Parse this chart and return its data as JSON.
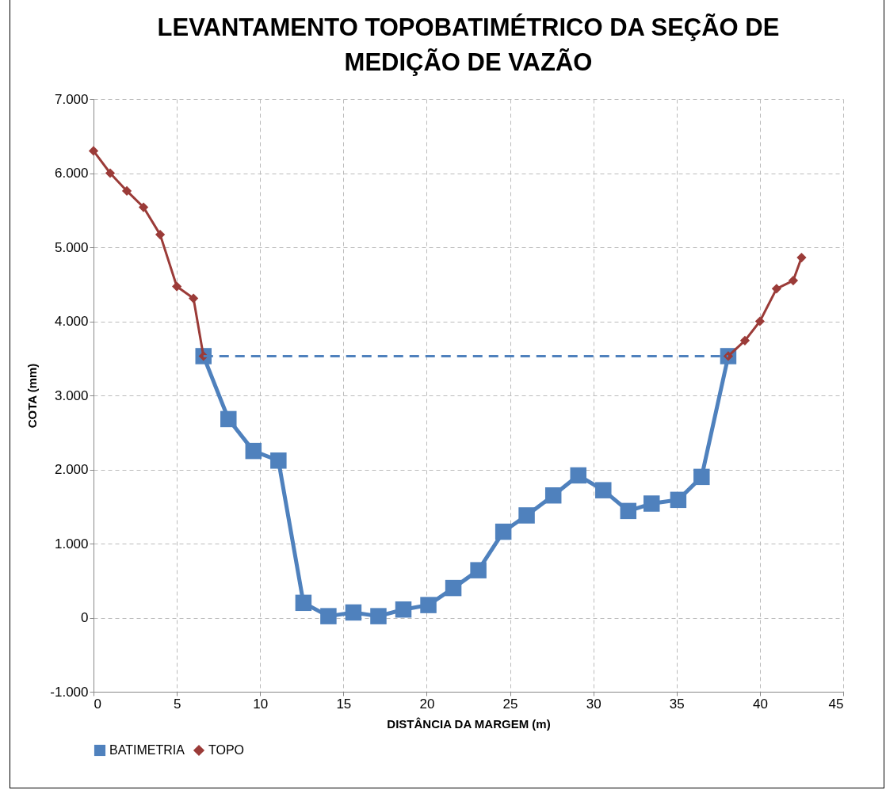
{
  "chart_data": {
    "type": "line",
    "title": "LEVANTAMENTO TOPOBATIMÉTRICO DA SEÇÃO DE MEDIÇÃO DE VAZÃO",
    "xlabel": "DISTÂNCIA DA MARGEM (m)",
    "ylabel": "COTA (mm)",
    "xlim": [
      0,
      45
    ],
    "xticks": [
      0,
      5,
      10,
      15,
      20,
      25,
      30,
      35,
      40,
      45
    ],
    "ylim": [
      -1000,
      7000
    ],
    "yticks": [
      {
        "value": -1000,
        "label": "-1.000"
      },
      0,
      {
        "value": 1000,
        "label": "1.000"
      },
      {
        "value": 2000,
        "label": "2.000"
      },
      {
        "value": 3000,
        "label": "3.000"
      },
      {
        "value": 4000,
        "label": "4.000"
      },
      {
        "value": 5000,
        "label": "5.000"
      },
      {
        "value": 6000,
        "label": "6.000"
      },
      {
        "value": 7000,
        "label": "7.000"
      }
    ],
    "grid": true,
    "legend": "bottom",
    "series": [
      {
        "name": "BATIMETRIA",
        "color": "#4f81bd",
        "marker": "square",
        "x": [
          6.6,
          8.1,
          9.6,
          11.1,
          12.6,
          14.1,
          15.6,
          17.1,
          18.6,
          20.1,
          21.6,
          23.1,
          24.6,
          26.0,
          27.6,
          29.1,
          30.6,
          32.1,
          33.5,
          35.1,
          36.5,
          38.1
        ],
        "values": [
          3530,
          2680,
          2250,
          2120,
          200,
          20,
          70,
          20,
          110,
          170,
          400,
          640,
          1160,
          1380,
          1650,
          1920,
          1720,
          1440,
          1540,
          1590,
          1900,
          3530
        ]
      },
      {
        "name": "TOPO",
        "color": "#9b3b38",
        "marker": "diamond",
        "x": [
          0,
          1,
          2,
          3,
          4,
          5,
          6,
          6.6,
          null,
          38.1,
          39.1,
          40.0,
          41.0,
          42.0,
          42.5
        ],
        "values": [
          6300,
          6000,
          5760,
          5540,
          5170,
          4470,
          4310,
          3530,
          null,
          3530,
          3740,
          4000,
          4440,
          4550,
          4860
        ]
      },
      {
        "color": "#4f81bd",
        "marker": "none",
        "line_style": "dashed",
        "x": [
          6.6,
          38.1
        ],
        "values": [
          3530,
          3530
        ]
      }
    ]
  }
}
